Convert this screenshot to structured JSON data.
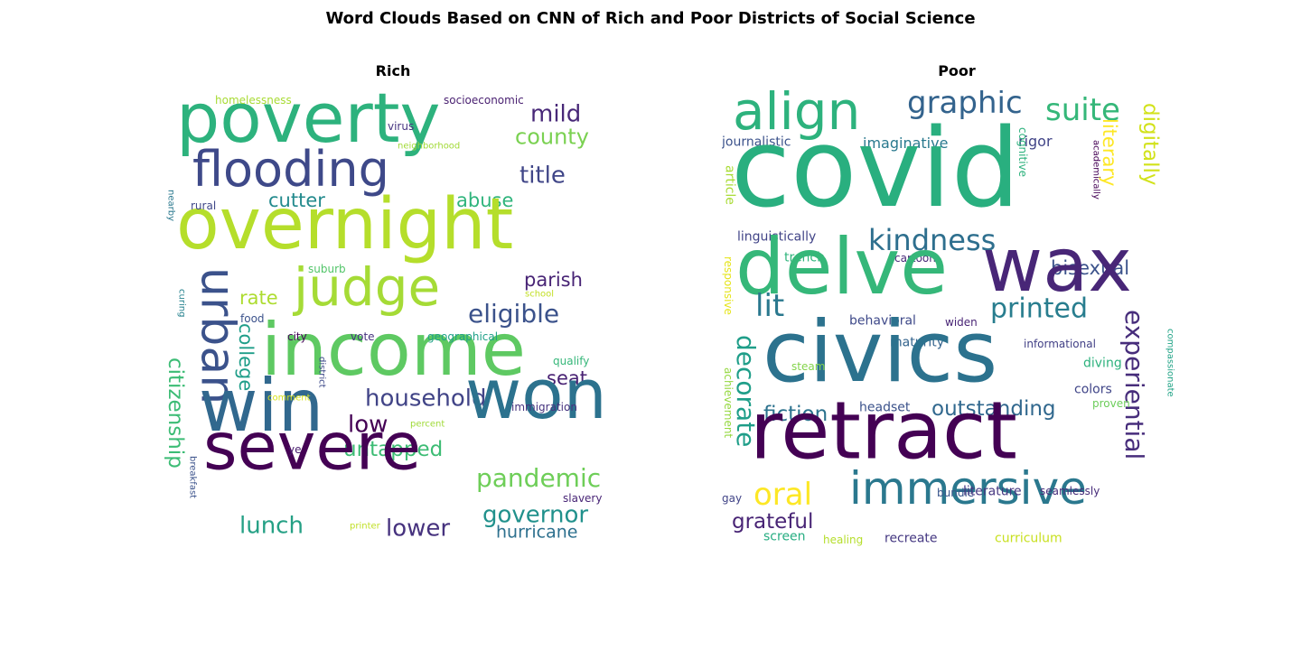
{
  "figure": {
    "title": "Word Clouds Based on CNN of Rich and Poor Districts of Social Science"
  },
  "chart_data": [
    {
      "type": "wordcloud",
      "title": "Rich",
      "words": [
        {
          "text": "poverty",
          "weight": 76,
          "color": "#2db27d"
        },
        {
          "text": "flooding",
          "weight": 54,
          "color": "#3e4989"
        },
        {
          "text": "mild",
          "weight": 26,
          "color": "#482878"
        },
        {
          "text": "county",
          "weight": 24,
          "color": "#7ad151"
        },
        {
          "text": "title",
          "weight": 26,
          "color": "#404688"
        },
        {
          "text": "cutter",
          "weight": 21,
          "color": "#238a8d"
        },
        {
          "text": "abuse",
          "weight": 21,
          "color": "#2fb47c"
        },
        {
          "text": "overnight",
          "weight": 78,
          "color": "#b5de2b"
        },
        {
          "text": "judge",
          "weight": 58,
          "color": "#a5db36"
        },
        {
          "text": "urban",
          "weight": 52,
          "color": "#3b528b"
        },
        {
          "text": "rate",
          "weight": 21,
          "color": "#addc30"
        },
        {
          "text": "parish",
          "weight": 21,
          "color": "#482475"
        },
        {
          "text": "eligible",
          "weight": 28,
          "color": "#3b528b"
        },
        {
          "text": "income",
          "weight": 80,
          "color": "#5ec962"
        },
        {
          "text": "citizenship",
          "weight": 23,
          "color": "#3cbc75"
        },
        {
          "text": "college",
          "weight": 21,
          "color": "#1f9e89"
        },
        {
          "text": "household",
          "weight": 26,
          "color": "#414487"
        },
        {
          "text": "seat",
          "weight": 21,
          "color": "#482173"
        },
        {
          "text": "low",
          "weight": 26,
          "color": "#440154"
        },
        {
          "text": "win",
          "weight": 80,
          "color": "#31688e"
        },
        {
          "text": "won",
          "weight": 76,
          "color": "#2c728e"
        },
        {
          "text": "untapped",
          "weight": 23,
          "color": "#3dbc74"
        },
        {
          "text": "severe",
          "weight": 72,
          "color": "#440154"
        },
        {
          "text": "pandemic",
          "weight": 28,
          "color": "#6ece58"
        },
        {
          "text": "governor",
          "weight": 26,
          "color": "#21918c"
        },
        {
          "text": "lunch",
          "weight": 26,
          "color": "#25a085"
        },
        {
          "text": "lower",
          "weight": 26,
          "color": "#46327e"
        },
        {
          "text": "hurricane",
          "weight": 19,
          "color": "#2d708e"
        },
        {
          "text": "homelessness",
          "weight": 12,
          "color": "#a8db34"
        },
        {
          "text": "socioeconomic",
          "weight": 12,
          "color": "#481f70"
        },
        {
          "text": "virus",
          "weight": 12,
          "color": "#463480"
        },
        {
          "text": "neighborhood",
          "weight": 10,
          "color": "#a2da37"
        },
        {
          "text": "nearby",
          "weight": 10,
          "color": "#2a788e"
        },
        {
          "text": "rural",
          "weight": 12,
          "color": "#3f4788"
        },
        {
          "text": "suburb",
          "weight": 12,
          "color": "#52c569"
        },
        {
          "text": "school",
          "weight": 10,
          "color": "#c2df23"
        },
        {
          "text": "curing",
          "weight": 10,
          "color": "#26828e"
        },
        {
          "text": "food",
          "weight": 12,
          "color": "#3b528b"
        },
        {
          "text": "city",
          "weight": 12,
          "color": "#450559"
        },
        {
          "text": "vote",
          "weight": 12,
          "color": "#46337f"
        },
        {
          "text": "geographical",
          "weight": 12,
          "color": "#1fa088"
        },
        {
          "text": "qualify",
          "weight": 12,
          "color": "#35b779"
        },
        {
          "text": "district",
          "weight": 10,
          "color": "#3e4a89"
        },
        {
          "text": "comment",
          "weight": 10,
          "color": "#d8e219"
        },
        {
          "text": "immigration",
          "weight": 12,
          "color": "#46337f"
        },
        {
          "text": "percent",
          "weight": 10,
          "color": "#a0da39"
        },
        {
          "text": "ye",
          "weight": 12,
          "color": "#481c6e"
        },
        {
          "text": "breakfast",
          "weight": 10,
          "color": "#3b528b"
        },
        {
          "text": "slavery",
          "weight": 12,
          "color": "#482576"
        },
        {
          "text": "printer",
          "weight": 10,
          "color": "#c0df25"
        }
      ]
    },
    {
      "type": "wordcloud",
      "title": "Poor",
      "words": [
        {
          "text": "align",
          "weight": 58,
          "color": "#2db27d"
        },
        {
          "text": "graphic",
          "weight": 34,
          "color": "#33638d"
        },
        {
          "text": "suite",
          "weight": 34,
          "color": "#35b779"
        },
        {
          "text": "literary",
          "weight": 21,
          "color": "#fde725"
        },
        {
          "text": "digitally",
          "weight": 23,
          "color": "#d2e21b"
        },
        {
          "text": "journalistic",
          "weight": 14,
          "color": "#3b528b"
        },
        {
          "text": "imaginative",
          "weight": 16,
          "color": "#29798e"
        },
        {
          "text": "rigor",
          "weight": 16,
          "color": "#414487"
        },
        {
          "text": "cognitive",
          "weight": 12,
          "color": "#2db27d"
        },
        {
          "text": "academically",
          "weight": 10,
          "color": "#440154"
        },
        {
          "text": "covid",
          "weight": 120,
          "color": "#29af7f"
        },
        {
          "text": "article",
          "weight": 14,
          "color": "#a8db34"
        },
        {
          "text": "kindness",
          "weight": 32,
          "color": "#2e6f8e"
        },
        {
          "text": "bisexual",
          "weight": 21,
          "color": "#3b528b"
        },
        {
          "text": "linguistically",
          "weight": 14,
          "color": "#414487"
        },
        {
          "text": "responsive",
          "weight": 12,
          "color": "#e5e419"
        },
        {
          "text": "trench",
          "weight": 14,
          "color": "#2fb47c"
        },
        {
          "text": "cartoon",
          "weight": 12,
          "color": "#482878"
        },
        {
          "text": "delve",
          "weight": 86,
          "color": "#35b779"
        },
        {
          "text": "wax",
          "weight": 82,
          "color": "#482677"
        },
        {
          "text": "lit",
          "weight": 34,
          "color": "#2a788e"
        },
        {
          "text": "printed",
          "weight": 30,
          "color": "#287d8e"
        },
        {
          "text": "experiential",
          "weight": 28,
          "color": "#472d7b"
        },
        {
          "text": "behavioral",
          "weight": 14,
          "color": "#3e4989"
        },
        {
          "text": "widen",
          "weight": 12,
          "color": "#482475"
        },
        {
          "text": "maturity",
          "weight": 14,
          "color": "#33638d"
        },
        {
          "text": "informational",
          "weight": 12,
          "color": "#424086"
        },
        {
          "text": "compassionate",
          "weight": 10,
          "color": "#20a386"
        },
        {
          "text": "decorate",
          "weight": 28,
          "color": "#1f9e89"
        },
        {
          "text": "civics",
          "weight": 94,
          "color": "#2c728e"
        },
        {
          "text": "steam",
          "weight": 12,
          "color": "#84d44b"
        },
        {
          "text": "diving",
          "weight": 14,
          "color": "#2db27d"
        },
        {
          "text": "achievement",
          "weight": 12,
          "color": "#95d840"
        },
        {
          "text": "colors",
          "weight": 14,
          "color": "#404588"
        },
        {
          "text": "proven",
          "weight": 12,
          "color": "#6ccd5a"
        },
        {
          "text": "fiction",
          "weight": 23,
          "color": "#2c728e"
        },
        {
          "text": "headset",
          "weight": 14,
          "color": "#3b528b"
        },
        {
          "text": "outstanding",
          "weight": 23,
          "color": "#31688e"
        },
        {
          "text": "retract",
          "weight": 88,
          "color": "#440154"
        },
        {
          "text": "oral",
          "weight": 34,
          "color": "#fde725"
        },
        {
          "text": "immersive",
          "weight": 50,
          "color": "#2a788e"
        },
        {
          "text": "grateful",
          "weight": 23,
          "color": "#482475"
        },
        {
          "text": "gay",
          "weight": 12,
          "color": "#414487"
        },
        {
          "text": "bundle",
          "weight": 12,
          "color": "#39558c"
        },
        {
          "text": "literature",
          "weight": 14,
          "color": "#453781"
        },
        {
          "text": "seamlessly",
          "weight": 12,
          "color": "#472c7a"
        },
        {
          "text": "screen",
          "weight": 14,
          "color": "#26ad81"
        },
        {
          "text": "healing",
          "weight": 12,
          "color": "#b5de2b"
        },
        {
          "text": "recreate",
          "weight": 14,
          "color": "#453882"
        },
        {
          "text": "curriculum",
          "weight": 14,
          "color": "#c8e020"
        }
      ]
    }
  ]
}
